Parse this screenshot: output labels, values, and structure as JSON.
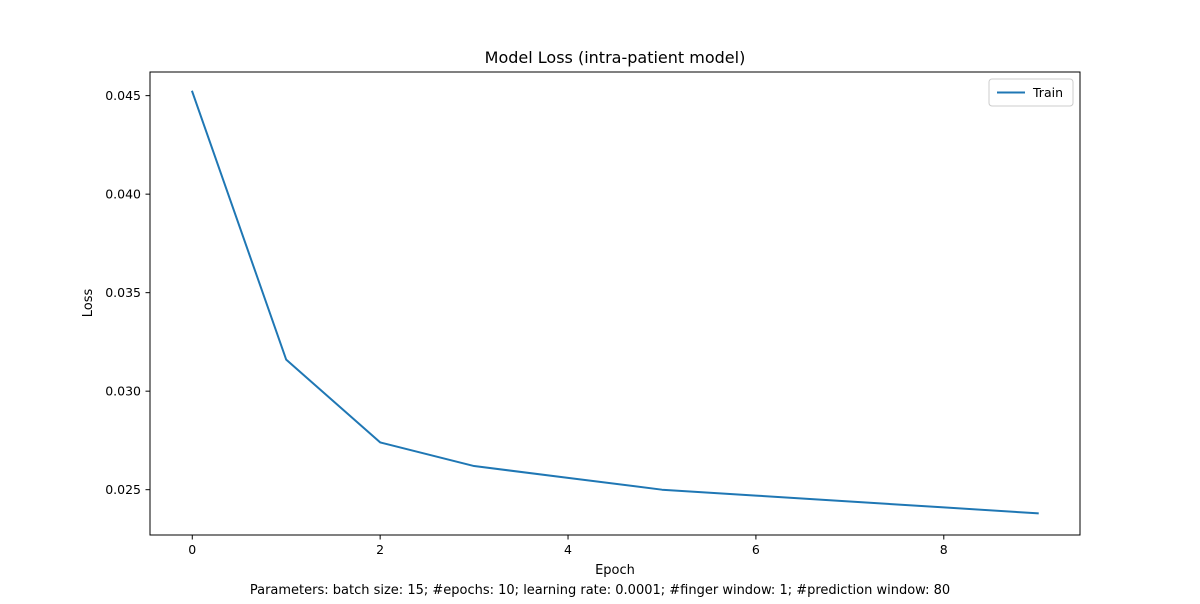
{
  "chart_data": {
    "type": "line",
    "title": "Model Loss (intra-patient model)",
    "xlabel": "Epoch",
    "ylabel": "Loss",
    "caption": "Parameters: batch size: 15; #epochs: 10; learning rate: 0.0001; #finger window: 1; #prediction window: 80",
    "xlim": [
      -0.45,
      9.45
    ],
    "ylim": [
      0.0227,
      0.0462
    ],
    "xticks": [
      0,
      2,
      4,
      6,
      8
    ],
    "xtick_labels": [
      "0",
      "2",
      "4",
      "6",
      "8"
    ],
    "yticks": [
      0.025,
      0.03,
      0.035,
      0.04,
      0.045
    ],
    "ytick_labels": [
      "0.025",
      "0.030",
      "0.035",
      "0.040",
      "0.045"
    ],
    "grid": false,
    "legend_position": "top-right",
    "series": [
      {
        "name": "Train",
        "color": "#1f77b4",
        "x": [
          0,
          1,
          2,
          3,
          4,
          5,
          6,
          7,
          8,
          9
        ],
        "y": [
          0.0452,
          0.0316,
          0.0274,
          0.0262,
          0.0256,
          0.025,
          0.0247,
          0.0244,
          0.0241,
          0.0238
        ]
      }
    ]
  }
}
